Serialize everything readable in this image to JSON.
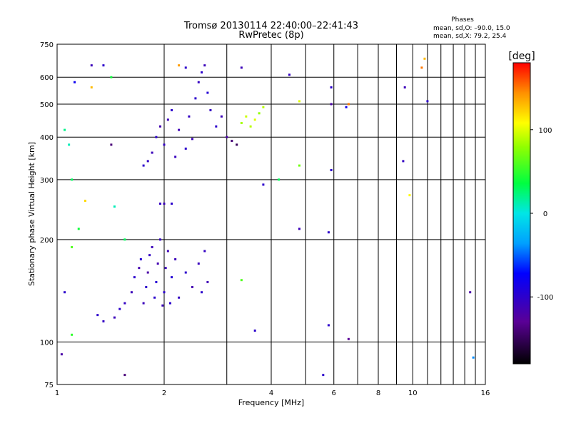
{
  "chart_data": {
    "type": "scatter",
    "title": "Tromsø 20130114 22:40:00–22:41:43",
    "subtitle": "RwPretec (8p)",
    "xlabel": "Frequency [MHz]",
    "ylabel": "Stationary phase Virtual Height [km]",
    "x_scale": "log2",
    "y_scale": "log",
    "xlim": [
      1,
      16
    ],
    "ylim": [
      75,
      750
    ],
    "x_ticks": [
      1,
      2,
      4,
      6,
      8,
      10,
      16
    ],
    "y_ticks": [
      75,
      100,
      200,
      300,
      400,
      500,
      600,
      750
    ],
    "grid": true,
    "stats": {
      "heading": "Phases",
      "line1": "mean, sd,O: –90.0, 15.0",
      "line2": "mean, sd,X:  79.2, 25.4"
    },
    "colorbar": {
      "label": "[deg]",
      "min": -180,
      "max": 180,
      "ticks": [
        100,
        0,
        -100
      ],
      "colormap": "rainbow (black → purple → blue → cyan → green → yellow → red)"
    },
    "series": [
      {
        "name": "Phase",
        "points_note": "x in MHz, y in km, c = phase in deg",
        "points": [
          {
            "x": 1.55,
            "y": 130,
            "c": -105
          },
          {
            "x": 1.62,
            "y": 140,
            "c": -110
          },
          {
            "x": 1.65,
            "y": 155,
            "c": -100
          },
          {
            "x": 1.7,
            "y": 165,
            "c": -115
          },
          {
            "x": 1.72,
            "y": 175,
            "c": -95
          },
          {
            "x": 1.75,
            "y": 130,
            "c": -110
          },
          {
            "x": 1.78,
            "y": 145,
            "c": -100
          },
          {
            "x": 1.8,
            "y": 160,
            "c": -120
          },
          {
            "x": 1.82,
            "y": 180,
            "c": -105
          },
          {
            "x": 1.85,
            "y": 190,
            "c": -110
          },
          {
            "x": 1.88,
            "y": 135,
            "c": -100
          },
          {
            "x": 1.9,
            "y": 150,
            "c": -95
          },
          {
            "x": 1.92,
            "y": 170,
            "c": -115
          },
          {
            "x": 1.95,
            "y": 200,
            "c": -105
          },
          {
            "x": 1.98,
            "y": 128,
            "c": -110
          },
          {
            "x": 2.0,
            "y": 140,
            "c": -100
          },
          {
            "x": 2.02,
            "y": 165,
            "c": -108
          },
          {
            "x": 2.05,
            "y": 185,
            "c": -112
          },
          {
            "x": 2.08,
            "y": 130,
            "c": -100
          },
          {
            "x": 2.1,
            "y": 155,
            "c": -95
          },
          {
            "x": 2.15,
            "y": 175,
            "c": -110
          },
          {
            "x": 2.2,
            "y": 135,
            "c": -105
          },
          {
            "x": 2.3,
            "y": 160,
            "c": -100
          },
          {
            "x": 2.4,
            "y": 145,
            "c": -115
          },
          {
            "x": 2.5,
            "y": 170,
            "c": -108
          },
          {
            "x": 2.55,
            "y": 140,
            "c": -100
          },
          {
            "x": 2.6,
            "y": 185,
            "c": -105
          },
          {
            "x": 2.65,
            "y": 150,
            "c": -112
          },
          {
            "x": 1.5,
            "y": 125,
            "c": -100
          },
          {
            "x": 1.45,
            "y": 118,
            "c": -110
          },
          {
            "x": 1.35,
            "y": 115,
            "c": -105
          },
          {
            "x": 1.3,
            "y": 120,
            "c": -100
          },
          {
            "x": 1.95,
            "y": 255,
            "c": -105
          },
          {
            "x": 2.0,
            "y": 255,
            "c": -110
          },
          {
            "x": 2.1,
            "y": 255,
            "c": -100
          },
          {
            "x": 1.75,
            "y": 330,
            "c": -100
          },
          {
            "x": 1.8,
            "y": 340,
            "c": -105
          },
          {
            "x": 1.85,
            "y": 360,
            "c": -110
          },
          {
            "x": 1.9,
            "y": 400,
            "c": -100
          },
          {
            "x": 1.95,
            "y": 430,
            "c": -115
          },
          {
            "x": 2.0,
            "y": 380,
            "c": -105
          },
          {
            "x": 2.05,
            "y": 450,
            "c": -110
          },
          {
            "x": 2.1,
            "y": 480,
            "c": -100
          },
          {
            "x": 2.15,
            "y": 350,
            "c": -108
          },
          {
            "x": 2.2,
            "y": 420,
            "c": -112
          },
          {
            "x": 2.3,
            "y": 370,
            "c": -100
          },
          {
            "x": 2.35,
            "y": 460,
            "c": -105
          },
          {
            "x": 2.4,
            "y": 395,
            "c": -110
          },
          {
            "x": 2.45,
            "y": 520,
            "c": -100
          },
          {
            "x": 2.5,
            "y": 580,
            "c": -105
          },
          {
            "x": 2.55,
            "y": 620,
            "c": -100
          },
          {
            "x": 2.6,
            "y": 650,
            "c": -110
          },
          {
            "x": 2.65,
            "y": 540,
            "c": -95
          },
          {
            "x": 2.7,
            "y": 480,
            "c": -105
          },
          {
            "x": 2.8,
            "y": 430,
            "c": -100
          },
          {
            "x": 2.9,
            "y": 460,
            "c": -110
          },
          {
            "x": 3.0,
            "y": 400,
            "c": -120
          },
          {
            "x": 3.1,
            "y": 390,
            "c": -140
          },
          {
            "x": 3.2,
            "y": 380,
            "c": -150
          },
          {
            "x": 3.3,
            "y": 440,
            "c": 85
          },
          {
            "x": 3.4,
            "y": 460,
            "c": 95
          },
          {
            "x": 3.5,
            "y": 430,
            "c": 90
          },
          {
            "x": 3.6,
            "y": 450,
            "c": 100
          },
          {
            "x": 3.7,
            "y": 470,
            "c": 80
          },
          {
            "x": 3.8,
            "y": 490,
            "c": 90
          },
          {
            "x": 1.05,
            "y": 420,
            "c": 20
          },
          {
            "x": 1.08,
            "y": 380,
            "c": 10
          },
          {
            "x": 1.1,
            "y": 300,
            "c": 30
          },
          {
            "x": 1.12,
            "y": 580,
            "c": -80
          },
          {
            "x": 1.25,
            "y": 560,
            "c": 130
          },
          {
            "x": 1.25,
            "y": 650,
            "c": -110
          },
          {
            "x": 1.35,
            "y": 650,
            "c": -100
          },
          {
            "x": 1.42,
            "y": 600,
            "c": 40
          },
          {
            "x": 1.42,
            "y": 380,
            "c": -140
          },
          {
            "x": 1.45,
            "y": 250,
            "c": 10
          },
          {
            "x": 1.2,
            "y": 260,
            "c": 120
          },
          {
            "x": 1.15,
            "y": 215,
            "c": 40
          },
          {
            "x": 1.1,
            "y": 190,
            "c": 60
          },
          {
            "x": 1.05,
            "y": 140,
            "c": -100
          },
          {
            "x": 1.1,
            "y": 105,
            "c": 50
          },
          {
            "x": 1.03,
            "y": 92,
            "c": -120
          },
          {
            "x": 1.55,
            "y": 80,
            "c": -140
          },
          {
            "x": 1.55,
            "y": 200,
            "c": 30
          },
          {
            "x": 2.2,
            "y": 650,
            "c": 140
          },
          {
            "x": 2.3,
            "y": 640,
            "c": -100
          },
          {
            "x": 3.3,
            "y": 640,
            "c": -110
          },
          {
            "x": 4.5,
            "y": 610,
            "c": -105
          },
          {
            "x": 4.8,
            "y": 510,
            "c": 100
          },
          {
            "x": 3.8,
            "y": 290,
            "c": -100
          },
          {
            "x": 4.2,
            "y": 300,
            "c": 30
          },
          {
            "x": 4.8,
            "y": 330,
            "c": 70
          },
          {
            "x": 4.8,
            "y": 215,
            "c": -110
          },
          {
            "x": 5.8,
            "y": 210,
            "c": -100
          },
          {
            "x": 5.9,
            "y": 320,
            "c": -100
          },
          {
            "x": 5.9,
            "y": 500,
            "c": -120
          },
          {
            "x": 5.9,
            "y": 560,
            "c": -100
          },
          {
            "x": 6.5,
            "y": 490,
            "c": -80
          },
          {
            "x": 6.6,
            "y": 500,
            "c": 150
          },
          {
            "x": 9.5,
            "y": 560,
            "c": -110
          },
          {
            "x": 11.0,
            "y": 510,
            "c": -100
          },
          {
            "x": 10.8,
            "y": 680,
            "c": 130
          },
          {
            "x": 10.6,
            "y": 640,
            "c": 150
          },
          {
            "x": 9.8,
            "y": 270,
            "c": 110
          },
          {
            "x": 9.4,
            "y": 340,
            "c": -105
          },
          {
            "x": 5.8,
            "y": 112,
            "c": -100
          },
          {
            "x": 6.6,
            "y": 102,
            "c": -130
          },
          {
            "x": 5.6,
            "y": 80,
            "c": -100
          },
          {
            "x": 3.6,
            "y": 108,
            "c": -100
          },
          {
            "x": 3.3,
            "y": 152,
            "c": 60
          },
          {
            "x": 14.5,
            "y": 140,
            "c": -120
          },
          {
            "x": 14.8,
            "y": 90,
            "c": -40
          }
        ]
      }
    ]
  }
}
